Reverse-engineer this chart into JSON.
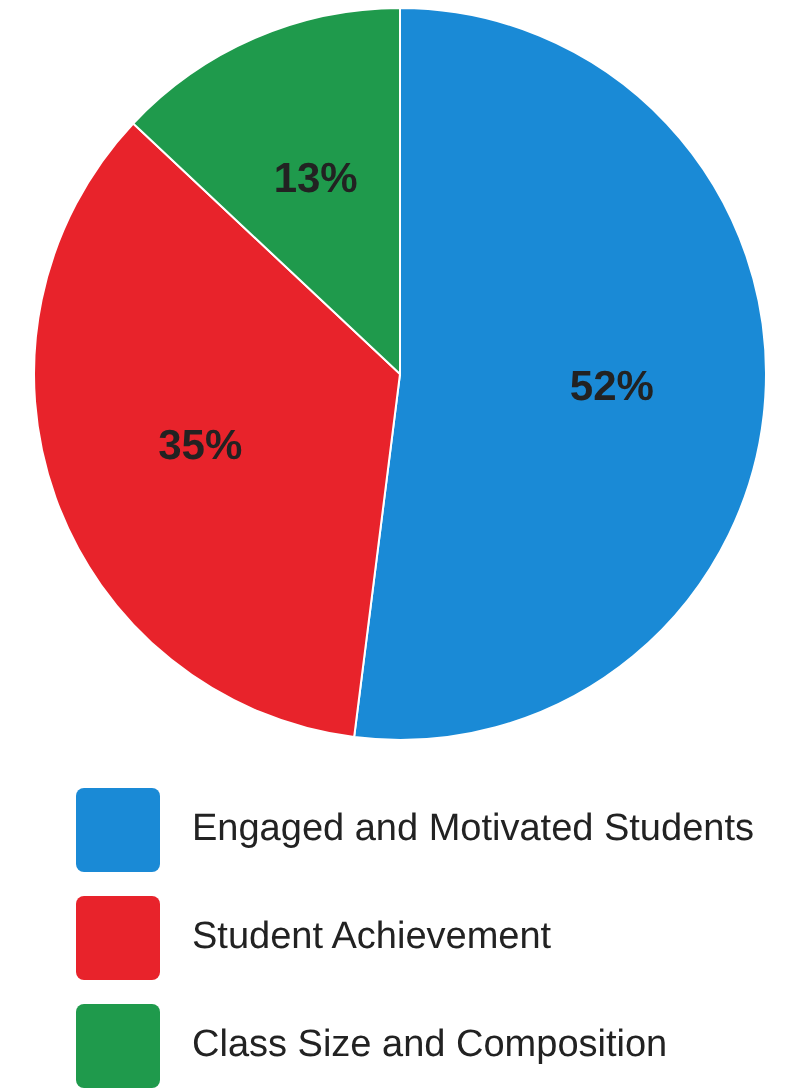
{
  "chart_data": {
    "type": "pie",
    "categories": [
      "Engaged and Motivated Students",
      "Student Achievement",
      "Class Size and Composition"
    ],
    "values": [
      52,
      35,
      13
    ],
    "colors": [
      "#1a8ad6",
      "#e8232b",
      "#1f9a4c"
    ],
    "value_labels": [
      "52%",
      "35%",
      "13%"
    ],
    "legend": "bottom"
  }
}
